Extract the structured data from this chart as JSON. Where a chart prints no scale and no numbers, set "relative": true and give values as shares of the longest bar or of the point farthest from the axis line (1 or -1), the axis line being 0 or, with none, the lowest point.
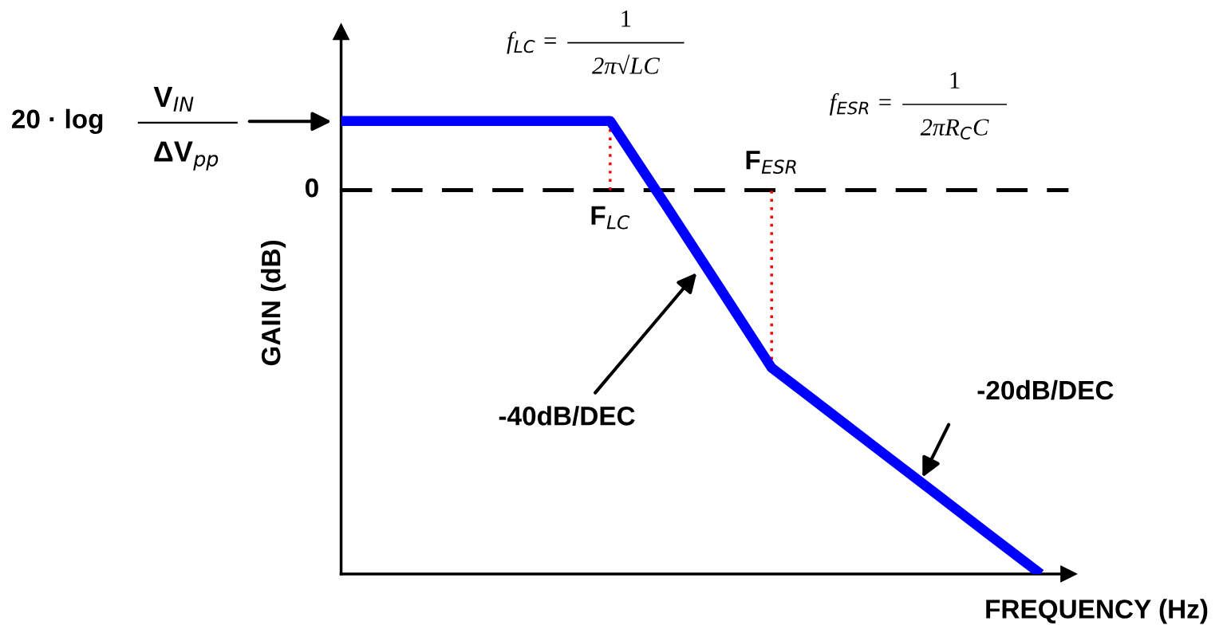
{
  "chart_data": {
    "type": "line",
    "relative": true,
    "xlabel": "FREQUENCY (Hz)",
    "ylabel": "GAIN (dB)",
    "categories": [
      null,
      null,
      null,
      null,
      null,
      null,
      null,
      null,
      null,
      null,
      null,
      null,
      null,
      null
    ],
    "series": [
      {
        "color": "#0000ff",
        "values": [
          0.18,
          0.18,
          0.18,
          0.18,
          0.18,
          0.18,
          -0.032,
          -0.247,
          -0.463,
          -0.57,
          -0.678,
          -0.785,
          -0.893,
          -1
        ]
      }
    ],
    "ref_lines": [
      {
        "axis": "y",
        "value": 0,
        "label": "0",
        "color": "#000000",
        "line_style": "dashed"
      }
    ],
    "annotations": [
      "-40dB/DEC",
      "-20dB/DEC",
      "20 · log",
      "V$_{IN}$",
      "ΔV$_{pp}$",
      "f$_{LC}$ =",
      "1",
      "2π√LC",
      "f$_{ESR}$ =",
      "1",
      "2πR$_{C}$C",
      "F$_{LC}$",
      "F$_{ESR}$"
    ],
    "marker": "none",
    "line_style": "solid"
  }
}
